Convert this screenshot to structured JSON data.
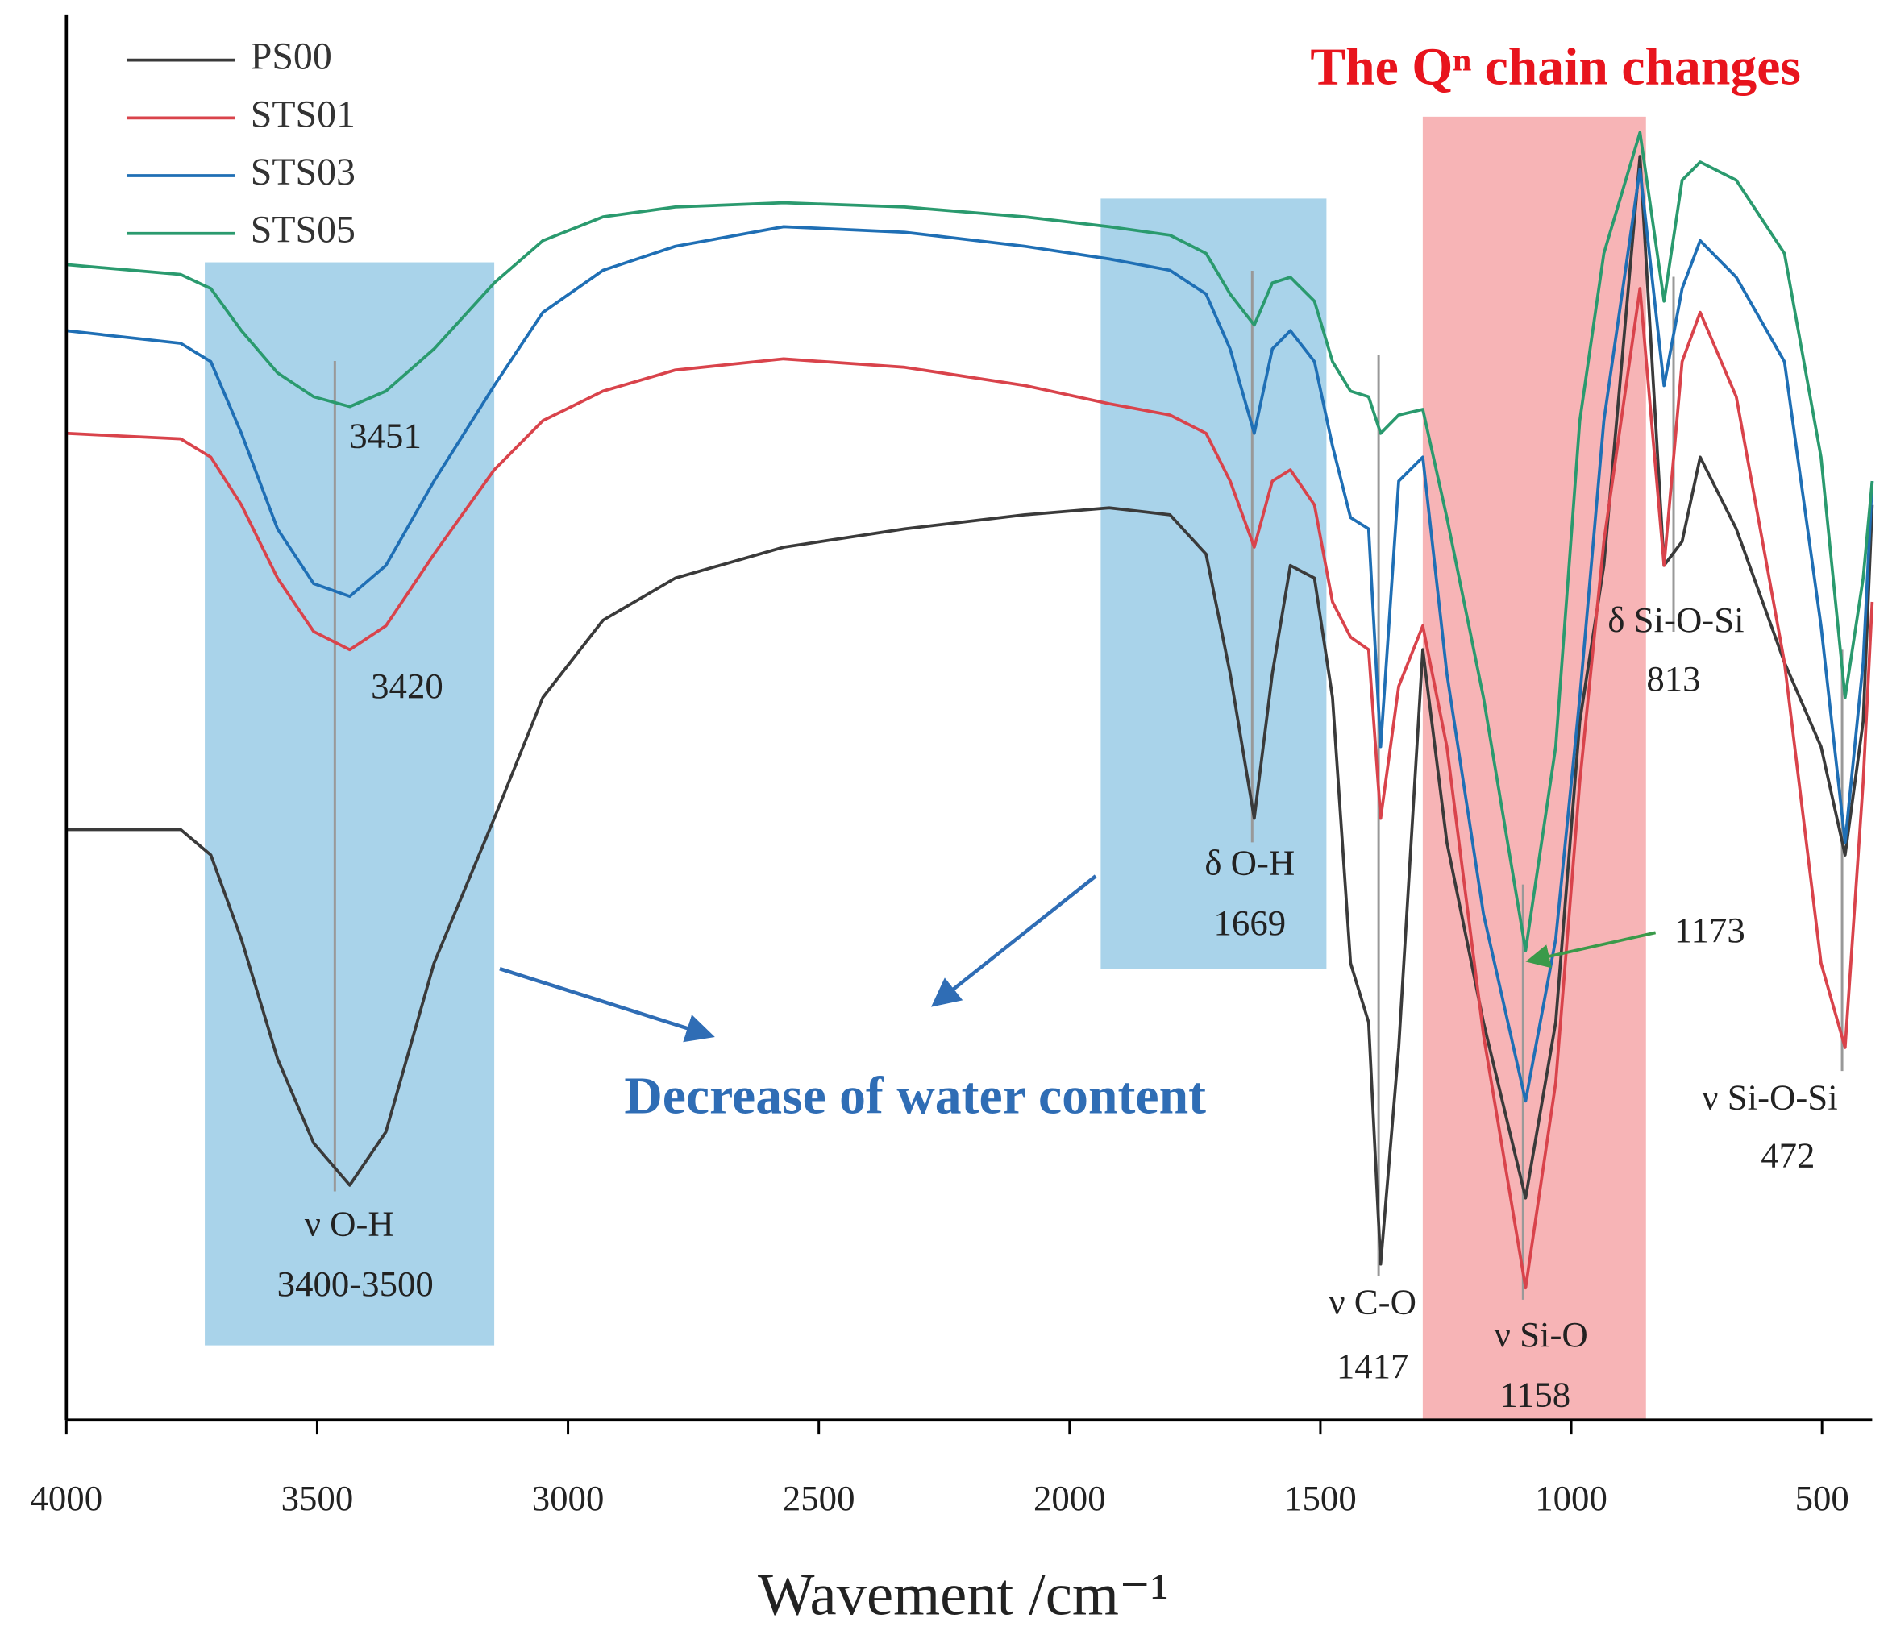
{
  "chart_data": {
    "type": "line",
    "title": "The Qⁿ chain changes",
    "xlabel": "Wavement /cm⁻¹",
    "xlim": [
      4000,
      400
    ],
    "ylim": [
      0,
      100
    ],
    "xticks": [
      4000,
      3500,
      3000,
      2500,
      2000,
      1500,
      1000,
      500
    ],
    "grid": false,
    "legend": "upper left",
    "x": [
      4000,
      3772,
      3712,
      3651,
      3579,
      3507,
      3435,
      3363,
      3267,
      3147,
      3050,
      2930,
      2786,
      2570,
      2329,
      2089,
      1921,
      1800,
      1728,
      1680,
      1632,
      1596,
      1560,
      1512,
      1476,
      1440,
      1404,
      1380,
      1344,
      1296,
      1248,
      1175,
      1091,
      1031,
      983,
      935,
      863,
      815,
      779,
      743,
      671,
      575,
      502,
      454,
      418,
      400
    ],
    "series": [
      {
        "name": "PS00",
        "color": "#3a3a3a",
        "values": [
          42.0,
          42.0,
          40.2,
          34.2,
          25.7,
          19.7,
          16.7,
          20.5,
          32.5,
          42.8,
          51.4,
          56.9,
          59.9,
          62.1,
          63.4,
          64.4,
          64.9,
          64.4,
          61.6,
          53.1,
          42.8,
          53.1,
          60.8,
          59.9,
          51.4,
          32.5,
          28.3,
          11.1,
          26.5,
          54.8,
          41.1,
          28.3,
          15.8,
          28.3,
          49.7,
          60.8,
          89.9,
          60.8,
          62.5,
          68.5,
          63.4,
          53.9,
          47.9,
          40.2,
          49.7,
          65.1
        ]
      },
      {
        "name": "STS01",
        "color": "#d9434b",
        "values": [
          70.2,
          69.8,
          68.5,
          65.1,
          59.9,
          56.1,
          54.8,
          56.5,
          61.6,
          67.6,
          71.1,
          73.2,
          74.7,
          75.5,
          74.9,
          73.6,
          72.3,
          71.5,
          70.2,
          66.8,
          62.1,
          66.8,
          67.6,
          65.1,
          58.2,
          55.7,
          54.8,
          42.8,
          52.2,
          56.5,
          47.9,
          27.4,
          9.4,
          24.0,
          45.4,
          62.5,
          80.5,
          60.8,
          75.3,
          78.8,
          72.8,
          53.9,
          32.5,
          26.5,
          45.4,
          58.2
        ]
      },
      {
        "name": "STS03",
        "color": "#1f6fb5",
        "values": [
          77.5,
          76.6,
          75.3,
          70.2,
          63.4,
          59.5,
          58.6,
          60.8,
          66.8,
          73.6,
          78.8,
          81.8,
          83.5,
          84.9,
          84.5,
          83.5,
          82.6,
          81.8,
          80.1,
          76.2,
          70.2,
          76.2,
          77.5,
          75.3,
          69.3,
          64.2,
          63.4,
          47.9,
          66.8,
          68.5,
          53.1,
          36.0,
          22.7,
          34.2,
          51.4,
          71.1,
          89.0,
          73.6,
          80.5,
          83.9,
          81.3,
          75.3,
          56.5,
          41.1,
          53.9,
          66.8
        ]
      },
      {
        "name": "STS05",
        "color": "#2a9a6e",
        "values": [
          82.2,
          81.5,
          80.5,
          77.5,
          74.5,
          72.8,
          72.1,
          73.2,
          76.2,
          80.9,
          83.9,
          85.6,
          86.3,
          86.6,
          86.3,
          85.6,
          84.9,
          84.3,
          83.0,
          80.1,
          77.9,
          80.9,
          81.3,
          79.6,
          75.3,
          73.2,
          72.8,
          70.2,
          71.5,
          71.9,
          64.2,
          51.4,
          33.4,
          47.9,
          71.1,
          83.0,
          91.6,
          79.6,
          88.2,
          89.5,
          88.2,
          83.0,
          68.5,
          51.4,
          59.9,
          66.8
        ]
      }
    ],
    "regions": [
      {
        "x": [
          3724,
          3147
        ],
        "color": "#a9d3ea"
      },
      {
        "x": [
          1938,
          1488
        ],
        "color": "#a9d3ea"
      },
      {
        "x": [
          1296,
          851
        ],
        "color": "#f7b4b6"
      }
    ],
    "annotations": [
      "3451",
      "3420",
      "ν O-H",
      "3400-3500",
      "δ O-H",
      "1669",
      "ν C-O",
      "1417",
      "ν Si-O",
      "1158",
      "δ Si-O-Si",
      "813",
      "ν Si-O-Si",
      "472",
      "1173",
      "Decrease of water content"
    ]
  }
}
